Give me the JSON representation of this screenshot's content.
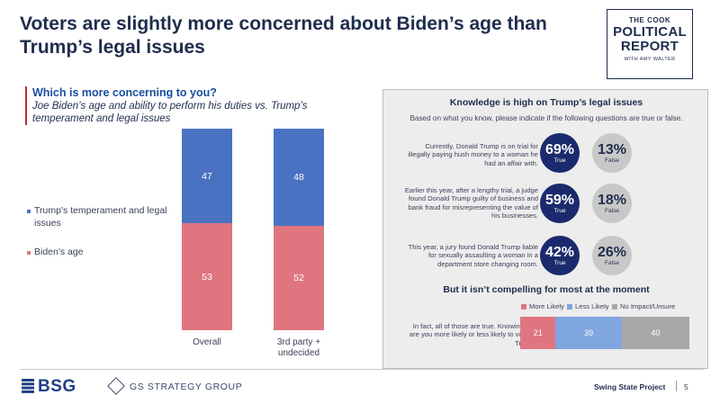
{
  "title": "Voters are slightly more concerned about Biden’s age than Trump’s legal issues",
  "logo": {
    "line1": "THE COOK",
    "line2": "POLITICAL",
    "line3": "REPORT",
    "line4": "WITH AMY WALTER"
  },
  "question": {
    "title": "Which is more concerning to you?",
    "subtitle": "Joe Biden’s age and ability to perform his duties vs. Trump’s temperament and legal issues"
  },
  "colors": {
    "trump": "#4a72c2",
    "biden": "#e07580",
    "true_circle": "#1a2a6c",
    "false_circle": "#c8c8c8",
    "more_likely": "#e07580",
    "less_likely": "#7fa6de",
    "no_impact": "#a8a8a8"
  },
  "chart_data": [
    {
      "type": "bar",
      "stacked": true,
      "categories": [
        "Overall",
        "3rd party + undecided"
      ],
      "series": [
        {
          "name": "Trump's temperament and legal issues",
          "values": [
            47,
            48
          ]
        },
        {
          "name": "Biden's age",
          "values": [
            53,
            52
          ]
        }
      ],
      "ylim": [
        0,
        100
      ],
      "legend": "left"
    },
    {
      "type": "table",
      "title": "Knowledge is high on Trump’s legal issues",
      "subtitle": "Based on what you know, please indicate if the following questions are true or false.",
      "rows": [
        {
          "statement": "Currently, Donald Trump is on trial for illegally paying hush money to a woman he had an affair with.",
          "true_pct": "69%",
          "false_pct": "13%"
        },
        {
          "statement": "Earlier this year, after a lengthy trial, a judge found Donald Trump guilty of business and bank fraud for misrepresenting the value of his businesses.",
          "true_pct": "59%",
          "false_pct": "18%"
        },
        {
          "statement": "This year, a jury found Donald Trump liable for sexually assaulting a woman in a department store changing room.",
          "true_pct": "42%",
          "false_pct": "26%"
        }
      ],
      "true_label": "True",
      "false_label": "False"
    },
    {
      "type": "bar",
      "stacked": true,
      "orientation": "horizontal",
      "title": "But it isn’t compelling for most at the moment",
      "categories": [
        "In fact, all of those are true. Knowing this, are you more likely or less likely to vote for Trump?"
      ],
      "series": [
        {
          "name": "More Likely",
          "values": [
            21
          ]
        },
        {
          "name": "Less Likely",
          "values": [
            39
          ]
        },
        {
          "name": "No Impact/Unsure",
          "values": [
            40
          ]
        }
      ],
      "xlim": [
        0,
        100
      ],
      "legend": "top"
    }
  ],
  "footer": {
    "bsg": "BSG",
    "gs": "GS STRATEGY GROUP",
    "project": "Swing State Project",
    "page": "5"
  }
}
